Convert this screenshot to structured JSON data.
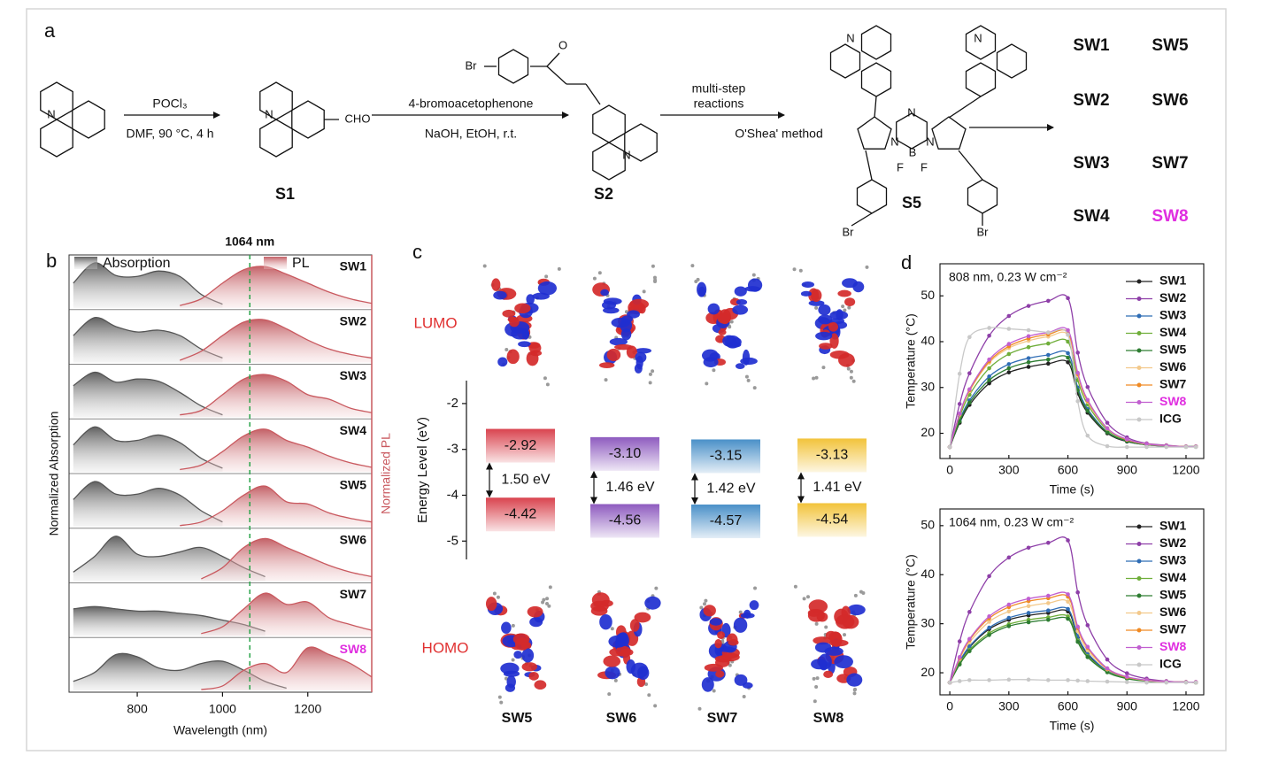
{
  "panel_labels": [
    "a",
    "b",
    "c",
    "d"
  ],
  "scheme": {
    "steps": [
      {
        "above": [
          "POCl₃"
        ],
        "below": "DMF, 90 °C, 4 h"
      },
      {
        "above": [
          "4-bromoacetophenone"
        ],
        "below": "NaOH, EtOH, r.t."
      },
      {
        "above": [
          "multi-step",
          "reactions"
        ],
        "below": "O'Shea' method"
      }
    ],
    "compounds": [
      "S1",
      "S2",
      "S5"
    ],
    "atoms": [
      "N",
      "N",
      "CHO",
      "Br",
      "O",
      "N",
      "N",
      "N",
      "N",
      "N",
      "N",
      "B",
      "F",
      "F",
      "Br",
      "Br"
    ],
    "products": [
      {
        "name": "SW1"
      },
      {
        "name": "SW2"
      },
      {
        "name": "SW3"
      },
      {
        "name": "SW4"
      },
      {
        "name": "SW5"
      },
      {
        "name": "SW6"
      },
      {
        "name": "SW7"
      },
      {
        "name": "SW8",
        "color": "#e02ee0"
      }
    ]
  },
  "chart_data": [
    {
      "type": "spectra",
      "xlabel": "Wavelength (nm)",
      "ylabel": "Normalized Absorption",
      "y2label": "Normalized PL",
      "legend": [
        "Absorption",
        "PL"
      ],
      "abs_color": "#555555",
      "pl_color": "#c9595f",
      "marker": {
        "value": 1064,
        "label": "1064 nm"
      },
      "xlim": [
        640,
        1350
      ],
      "xticks": [
        800,
        1000,
        1200
      ],
      "ylim": [
        0,
        1.1
      ],
      "abs_x": [
        650,
        700,
        750,
        800,
        850,
        900,
        950,
        1000,
        1050,
        1100,
        1150
      ],
      "pl_x": [
        900,
        950,
        1000,
        1050,
        1100,
        1150,
        1200,
        1250,
        1300,
        1350
      ],
      "series": [
        {
          "name": "SW1",
          "absorption": [
            0.55,
            1.0,
            0.72,
            0.7,
            0.82,
            0.7,
            0.3,
            0.08,
            null,
            null,
            null
          ],
          "pl": [
            0.05,
            0.2,
            0.55,
            0.85,
            0.92,
            0.75,
            0.55,
            0.35,
            0.2,
            0.1
          ]
        },
        {
          "name": "SW2",
          "absorption": [
            0.6,
            1.0,
            0.8,
            0.68,
            0.72,
            0.6,
            0.3,
            0.1,
            null,
            null,
            null
          ],
          "pl": [
            0.05,
            0.25,
            0.6,
            0.9,
            0.95,
            0.75,
            0.5,
            0.3,
            0.18,
            0.1
          ]
        },
        {
          "name": "SW3",
          "absorption": [
            0.7,
            1.0,
            0.78,
            0.85,
            0.8,
            0.55,
            0.25,
            0.05,
            null,
            null,
            null
          ],
          "pl": [
            0.05,
            0.15,
            0.5,
            0.85,
            0.95,
            0.8,
            0.5,
            0.4,
            0.2,
            0.1
          ]
        },
        {
          "name": "SW4",
          "absorption": [
            0.6,
            1.0,
            0.7,
            0.7,
            0.82,
            0.65,
            0.3,
            0.08,
            null,
            null,
            null
          ],
          "pl": [
            0.05,
            0.15,
            0.45,
            0.8,
            0.95,
            0.7,
            0.55,
            0.35,
            0.2,
            0.1
          ]
        },
        {
          "name": "SW5",
          "absorption": [
            0.6,
            1.0,
            0.72,
            0.72,
            0.85,
            0.7,
            0.35,
            0.1,
            null,
            null,
            null
          ],
          "pl": [
            0.02,
            0.1,
            0.35,
            0.7,
            0.9,
            0.55,
            0.5,
            0.3,
            0.18,
            0.1
          ]
        },
        {
          "name": "SW6",
          "absorption": [
            0.2,
            0.55,
            1.0,
            0.6,
            0.55,
            0.65,
            0.75,
            0.55,
            0.3,
            0.1,
            null
          ],
          "pl": [
            null,
            0.05,
            0.3,
            0.75,
            0.95,
            0.75,
            0.55,
            0.35,
            0.2,
            0.1
          ]
        },
        {
          "name": "SW7",
          "absorption": [
            0.6,
            0.65,
            0.6,
            0.55,
            0.55,
            0.5,
            0.45,
            0.35,
            0.25,
            0.1,
            null
          ],
          "pl": [
            null,
            0.05,
            0.2,
            0.6,
            0.95,
            0.7,
            0.75,
            0.4,
            0.25,
            0.12
          ]
        },
        {
          "name": "SW8",
          "label_color": "#e02ee0",
          "absorption": [
            0.2,
            0.4,
            0.8,
            0.75,
            0.5,
            0.45,
            0.6,
            0.65,
            0.45,
            0.2,
            0.05
          ],
          "pl": [
            null,
            0.02,
            0.1,
            0.45,
            0.6,
            0.4,
            0.95,
            0.8,
            0.6,
            0.3
          ]
        }
      ]
    },
    {
      "type": "energy-levels",
      "ylabel": "Energy Level (eV)",
      "ylim": [
        -5.4,
        -1.5
      ],
      "yticks": [
        -2,
        -3,
        -4,
        -5
      ],
      "categories": [
        "SW5",
        "SW6",
        "SW7",
        "SW8"
      ],
      "colors": [
        "#d9434e",
        "#8e5bbf",
        "#4a90c8",
        "#f2c33a"
      ],
      "series": [
        {
          "name": "LUMO",
          "values": [
            -2.92,
            -3.1,
            -3.15,
            -3.13
          ],
          "value_labels": [
            "-2.92",
            "-3.10",
            "-3.15",
            "-3.13"
          ]
        },
        {
          "name": "HOMO",
          "values": [
            -4.42,
            -4.56,
            -4.57,
            -4.54
          ],
          "value_labels": [
            "-4.42",
            "-4.56",
            "-4.57",
            "-4.54"
          ]
        }
      ],
      "gaps": {
        "values": [
          1.5,
          1.46,
          1.42,
          1.41
        ],
        "value_labels": [
          "1.50 eV",
          "1.46 eV",
          "1.42 eV",
          "1.41 eV"
        ]
      }
    },
    {
      "type": "line",
      "annotation": "808 nm, 0.23 W cm⁻²",
      "xlabel": "Time (s)",
      "ylabel": "Temperature (°C)",
      "legend_position": "top-right",
      "xlim": [
        -50,
        1290
      ],
      "xticks": [
        0,
        300,
        600,
        900,
        1200
      ],
      "ylim": [
        14.5,
        57
      ],
      "yticks": [
        20,
        30,
        40,
        50
      ],
      "x": [
        0,
        50,
        100,
        200,
        300,
        400,
        500,
        600,
        650,
        700,
        800,
        900,
        1000,
        1100,
        1200,
        1250
      ],
      "series": [
        {
          "name": "SW1",
          "color": "#222222",
          "values": [
            17,
            22.3,
            26.2,
            30.9,
            33.3,
            34.5,
            35.2,
            35.5,
            28.7,
            24.5,
            20.0,
            18.2,
            17.5,
            17.2,
            17.1,
            17.1
          ]
        },
        {
          "name": "SW2",
          "color": "#8e3fa8",
          "values": [
            17,
            26.4,
            33.1,
            41.3,
            45.6,
            47.8,
            48.9,
            49.5,
            37.6,
            30.1,
            22.3,
            19.1,
            17.8,
            17.4,
            17.1,
            17.1
          ]
        },
        {
          "name": "SW3",
          "color": "#2f6db5",
          "values": [
            17,
            22.9,
            27.2,
            32.4,
            35.1,
            36.4,
            37.1,
            37.5,
            30.0,
            25.3,
            20.3,
            18.3,
            17.5,
            17.2,
            17.1,
            17.1
          ]
        },
        {
          "name": "SW4",
          "color": "#6fae3a",
          "values": [
            17,
            23.6,
            28.4,
            34.2,
            37.3,
            38.8,
            39.6,
            40,
            31.6,
            26.3,
            20.7,
            18.5,
            17.6,
            17.3,
            17.1,
            17.1
          ]
        },
        {
          "name": "SW5",
          "color": "#2e7d32",
          "values": [
            17,
            22.6,
            26.7,
            31.6,
            34.2,
            35.5,
            36.1,
            36.5,
            29.4,
            24.9,
            20.2,
            18.3,
            17.5,
            17.2,
            17.1,
            17.1
          ]
        },
        {
          "name": "SW6",
          "color": "#f3c98b",
          "values": [
            17,
            24.1,
            29.2,
            35.4,
            38.6,
            40.2,
            41.1,
            41.5,
            32.6,
            26.9,
            21.0,
            18.6,
            17.6,
            17.3,
            17.1,
            17.1
          ]
        },
        {
          "name": "SW7",
          "color": "#f08a24",
          "values": [
            17,
            24.2,
            29.4,
            35.7,
            39.0,
            40.7,
            41.6,
            42,
            32.9,
            27.1,
            21.1,
            18.6,
            17.7,
            17.3,
            17.1,
            17.1
          ]
        },
        {
          "name": "SW8",
          "color": "#c15fd0",
          "label_color": "#e02ee0",
          "values": [
            17,
            24.3,
            29.6,
            36.1,
            39.5,
            41.2,
            42.0,
            42.5,
            33.2,
            27.3,
            21.1,
            18.7,
            17.7,
            17.3,
            17.1,
            17.1
          ]
        },
        {
          "name": "ICG",
          "color": "#c8c8c8",
          "values": [
            17,
            33,
            41,
            43,
            42.8,
            42.5,
            42,
            41.5,
            27,
            19.5,
            17.2,
            17,
            17,
            17,
            17,
            17
          ]
        }
      ]
    },
    {
      "type": "line",
      "annotation": "1064 nm, 0.23 W cm⁻²",
      "xlabel": "Time (s)",
      "ylabel": "Temperature (°C)",
      "legend_position": "top-right",
      "xlim": [
        -50,
        1290
      ],
      "xticks": [
        0,
        300,
        600,
        900,
        1200
      ],
      "ylim": [
        15.5,
        53.4
      ],
      "yticks": [
        20,
        30,
        40,
        50
      ],
      "x": [
        0,
        50,
        100,
        200,
        300,
        400,
        500,
        600,
        650,
        700,
        800,
        900,
        1000,
        1100,
        1200,
        1250
      ],
      "series": [
        {
          "name": "SW1",
          "color": "#222222",
          "values": [
            18,
            22.2,
            25.2,
            28.9,
            30.8,
            31.7,
            32.2,
            32.5,
            27.2,
            23.8,
            20.3,
            18.9,
            18.4,
            18.2,
            18.1,
            18
          ]
        },
        {
          "name": "SW2",
          "color": "#8e3fa8",
          "values": [
            18,
            26.4,
            32.4,
            39.7,
            43.5,
            45.5,
            46.5,
            47,
            36.4,
            29.7,
            22.7,
            19.9,
            18.8,
            18.3,
            18.1,
            18.1
          ]
        },
        {
          "name": "SW3",
          "color": "#2f6db5",
          "values": [
            18,
            22.3,
            25.4,
            29.2,
            31.2,
            32.2,
            32.7,
            33,
            27.5,
            24.0,
            20.4,
            19.0,
            18.4,
            18.2,
            18.1,
            18
          ]
        },
        {
          "name": "SW4",
          "color": "#6fae3a",
          "values": [
            18,
            21.9,
            24.7,
            28.1,
            29.9,
            30.8,
            31.3,
            31.5,
            26.6,
            23.4,
            20.2,
            18.9,
            18.4,
            18.1,
            18.1,
            18
          ]
        },
        {
          "name": "SW5",
          "color": "#2e7d32",
          "values": [
            18,
            21.7,
            24.4,
            27.7,
            29.5,
            30.3,
            30.8,
            31,
            26.3,
            23.2,
            20.1,
            18.8,
            18.3,
            18.1,
            18.1,
            18
          ]
        },
        {
          "name": "SW6",
          "color": "#f3c98b",
          "values": [
            18,
            22.8,
            26.2,
            30.4,
            32.5,
            33.6,
            34.2,
            34.5,
            28.5,
            24.6,
            20.7,
            19.1,
            18.4,
            18.2,
            18.1,
            18
          ]
        },
        {
          "name": "SW7",
          "color": "#f08a24",
          "values": [
            18,
            23,
            26.7,
            31.1,
            33.4,
            34.6,
            35.2,
            35.5,
            29.1,
            25.1,
            20.8,
            19.1,
            18.5,
            18.2,
            18.1,
            18.1
          ]
        },
        {
          "name": "SW8",
          "color": "#c15fd0",
          "label_color": "#e02ee0",
          "values": [
            18,
            23.2,
            26.9,
            31.5,
            33.9,
            35.1,
            35.7,
            36,
            29.4,
            25.3,
            20.9,
            19.2,
            18.5,
            18.2,
            18.1,
            18.1
          ]
        },
        {
          "name": "ICG",
          "color": "#c8c8c8",
          "values": [
            18,
            18.3,
            18.5,
            18.5,
            18.6,
            18.6,
            18.5,
            18.5,
            18.4,
            18.3,
            18.2,
            18.1,
            18,
            18,
            18,
            18
          ]
        }
      ]
    }
  ]
}
